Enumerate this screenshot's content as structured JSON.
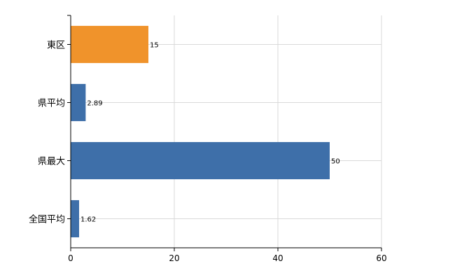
{
  "chart_data": {
    "type": "bar",
    "orientation": "horizontal",
    "categories": [
      "東区",
      "県平均",
      "県最大",
      "全国平均"
    ],
    "values": [
      15,
      2.89,
      50,
      1.62
    ],
    "value_labels": [
      "15",
      "2.89",
      "50",
      "1.62"
    ],
    "bar_colors": [
      "#f0932b",
      "#3e6fa9",
      "#3e6fa9",
      "#3e6fa9"
    ],
    "xlim": [
      0,
      60
    ],
    "xticks": [
      0,
      20,
      40,
      60
    ],
    "grid": true,
    "legend": "none"
  }
}
